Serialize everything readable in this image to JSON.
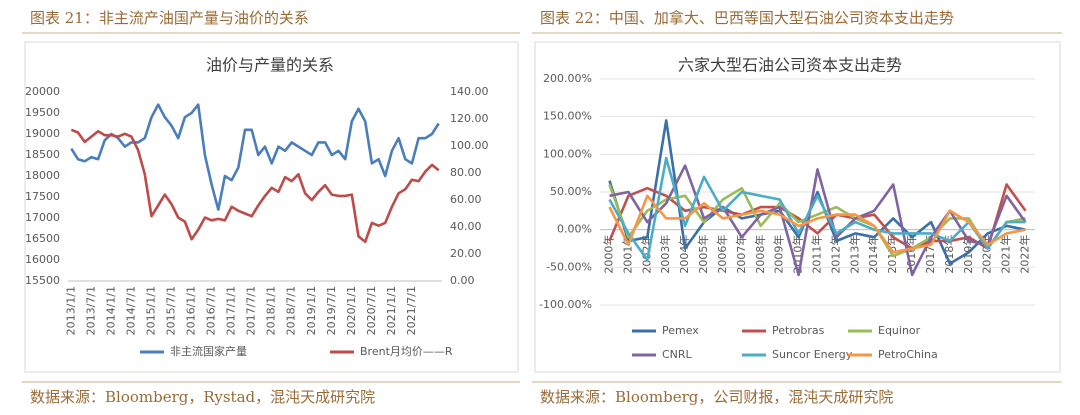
{
  "captions": [
    "图表 21：非主流产油国产量与油价的关系",
    "图表 22：中国、加拿大、巴西等国大型石油公司资本支出走势"
  ],
  "sources": [
    "数据来源：Bloomberg，Rystad，混沌天成研究院",
    "数据来源：Bloomberg，公司财报，混沌天成研究院"
  ],
  "chart_data": [
    {
      "type": "line",
      "title": "油价与产量的关系",
      "categories": [
        "2013/1/1",
        null,
        null,
        "2013/7/1",
        null,
        null,
        "2014/1/1",
        null,
        null,
        "2014/7/1",
        null,
        null,
        "2015/1/1",
        null,
        null,
        "2015/7/1",
        null,
        null,
        "2016/1/1",
        null,
        null,
        "2016/7/1",
        null,
        null,
        "2017/1/1",
        null,
        null,
        "2017/7/1",
        null,
        null,
        "2018/1/1",
        null,
        null,
        "2018/7/1",
        null,
        null,
        "2019/1/1",
        null,
        null,
        "2019/7/1",
        null,
        null,
        "2020/1/1",
        null,
        null,
        "2020/7/1",
        null,
        null,
        "2021/1/1",
        null,
        null,
        "2021/7/1",
        null,
        null,
        null,
        null
      ],
      "series": [
        {
          "name": "非主流国家产量",
          "color": "#4a7ebb",
          "values": [
            18650,
            18400,
            18350,
            18450,
            18400,
            18850,
            19000,
            18900,
            18700,
            18800,
            18800,
            18900,
            19400,
            19700,
            19400,
            19200,
            18900,
            19400,
            19500,
            19700,
            18500,
            17800,
            17200,
            18000,
            17900,
            18200,
            19100,
            19100,
            18500,
            18700,
            18300,
            18700,
            18600,
            18800,
            18700,
            18600,
            18500,
            18800,
            18800,
            18500,
            18600,
            18400,
            19300,
            19600,
            19300,
            18300,
            18400,
            18000,
            18600,
            18900,
            18400,
            18300,
            18900,
            18900,
            19000,
            19250
          ]
        },
        {
          "name": "Brent月均价——R",
          "color": "#be4b48",
          "axis": "y2",
          "values": [
            112,
            110,
            103,
            107,
            111,
            108,
            108,
            107,
            109,
            107,
            97,
            79,
            48,
            56,
            64,
            57,
            47,
            44,
            31,
            38,
            47,
            45,
            46,
            45,
            55,
            52,
            50,
            48,
            56,
            63,
            69,
            66,
            77,
            74,
            79,
            65,
            60,
            66,
            71,
            64,
            63,
            63,
            64,
            33,
            29,
            43,
            41,
            43,
            55,
            65,
            68,
            75,
            74,
            81,
            86,
            82
          ]
        }
      ],
      "ylim": [
        15500,
        20000
      ],
      "yticks": [
        15500,
        16000,
        16500,
        17000,
        17500,
        18000,
        18500,
        19000,
        19500,
        20000
      ],
      "y2lim": [
        0,
        140
      ],
      "y2ticks": [
        {
          "value": 0,
          "label": "0.00"
        },
        {
          "value": 20,
          "label": "20.00"
        },
        {
          "value": 40,
          "label": "40.00"
        },
        {
          "value": 60,
          "label": "60.00"
        },
        {
          "value": 80,
          "label": "80.00"
        },
        {
          "value": 100,
          "label": "100.00"
        },
        {
          "value": 120,
          "label": "120.00"
        },
        {
          "value": 140,
          "label": "140.00"
        }
      ],
      "grid": false
    },
    {
      "type": "line",
      "title": "六家大型石油公司资本支出走势",
      "categories": [
        "2000年",
        "2001年",
        "2002年",
        "2003年",
        "2004年",
        "2005年",
        "2006年",
        "2007年",
        "2008年",
        "2009年",
        "2010年",
        "2011年",
        "2012年",
        "2013年",
        "2014年",
        "2015年",
        "2016年",
        "2017年",
        "2018年",
        "2019年",
        "2020年",
        "2021年",
        "2022年"
      ],
      "series": [
        {
          "name": "Pemex",
          "color": "#3b6fa9",
          "values": [
            65,
            -15,
            -10,
            145,
            -25,
            10,
            30,
            15,
            20,
            25,
            -10,
            50,
            -15,
            -5,
            -10,
            15,
            -10,
            10,
            -45,
            -30,
            -5,
            5,
            0
          ]
        },
        {
          "name": "Petrobras",
          "color": "#c0504d",
          "values": [
            -15,
            45,
            55,
            45,
            25,
            30,
            25,
            20,
            30,
            30,
            15,
            -5,
            20,
            15,
            20,
            -10,
            -25,
            -15,
            -15,
            -10,
            -25,
            60,
            25
          ]
        },
        {
          "name": "Equinor",
          "color": "#9bbb59",
          "values": [
            60,
            -10,
            25,
            40,
            45,
            10,
            40,
            55,
            5,
            35,
            10,
            20,
            30,
            15,
            5,
            -35,
            -25,
            -10,
            15,
            15,
            -25,
            10,
            15
          ]
        },
        {
          "name": "CNRL",
          "color": "#8064a2",
          "values": [
            45,
            50,
            10,
            35,
            85,
            15,
            30,
            -10,
            20,
            30,
            -60,
            80,
            -10,
            15,
            25,
            60,
            -60,
            -10,
            25,
            -15,
            -20,
            45,
            10
          ]
        },
        {
          "name": "Suncor Energy",
          "color": "#4bacc6",
          "values": [
            40,
            -5,
            -40,
            95,
            5,
            70,
            25,
            50,
            45,
            40,
            -5,
            45,
            -5,
            10,
            0,
            -5,
            -5,
            -5,
            -15,
            10,
            -25,
            10,
            10
          ]
        },
        {
          "name": "PetroChina",
          "color": "#f79646",
          "values": [
            30,
            -20,
            45,
            15,
            15,
            35,
            15,
            20,
            25,
            20,
            5,
            15,
            20,
            20,
            5,
            -30,
            -25,
            -20,
            25,
            10,
            -20,
            -5,
            0
          ]
        }
      ],
      "ylim": [
        -100,
        200
      ],
      "yticks": [
        {
          "value": -100,
          "label": "-100.00%"
        },
        {
          "value": -50,
          "label": "-50.00%"
        },
        {
          "value": 0,
          "label": "0.00%"
        },
        {
          "value": 50,
          "label": "50.00%"
        },
        {
          "value": 100,
          "label": "100.00%"
        },
        {
          "value": 150,
          "label": "150.00%"
        },
        {
          "value": 200,
          "label": "200.00%"
        }
      ],
      "grid": true
    }
  ]
}
